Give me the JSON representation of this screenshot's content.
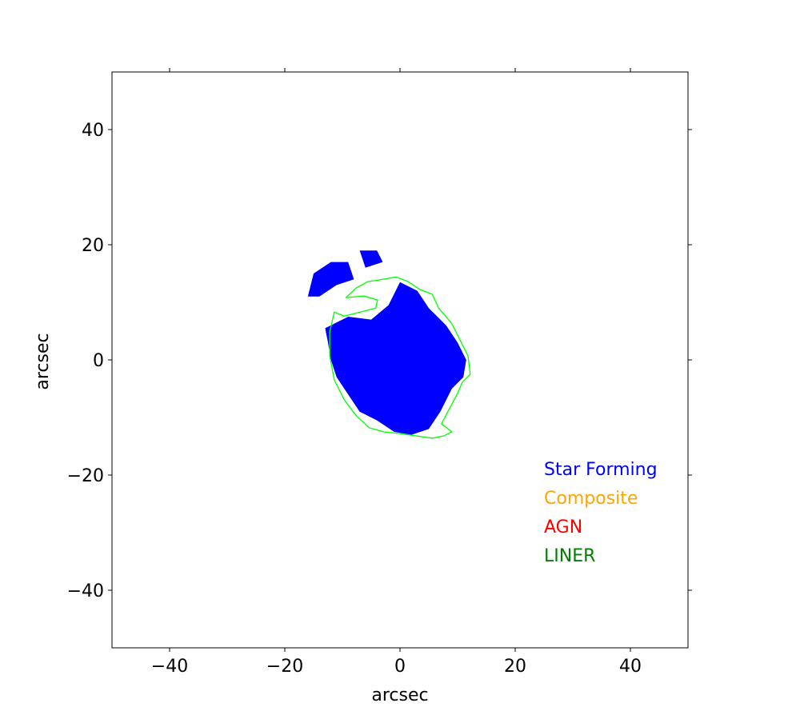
{
  "chart_data": {
    "type": "map",
    "xlabel": "arcsec",
    "ylabel": "arcsec",
    "xlim": [
      -50,
      50
    ],
    "ylim": [
      -50,
      50
    ],
    "xticks": [
      {
        "value": -40,
        "label": "−40"
      },
      {
        "value": -20,
        "label": "−20"
      },
      0,
      20,
      40
    ],
    "yticks": [
      {
        "value": -40,
        "label": "−40"
      },
      {
        "value": -20,
        "label": "−20"
      },
      0,
      20,
      40
    ],
    "series": [
      {
        "name": "Star Forming",
        "color": "#0000ff",
        "x": [
          [
            -13,
            -9,
            -5,
            -2,
            0,
            3,
            5,
            8,
            10,
            11.5,
            11,
            9,
            7,
            5,
            2,
            -1,
            -4,
            -7,
            -9,
            -11,
            -12,
            -12.5
          ],
          [
            -16,
            -15,
            -12,
            -9,
            -8,
            -11,
            -14
          ],
          [
            -7,
            -4,
            -3,
            -6
          ]
        ],
        "y": [
          [
            5.5,
            7.5,
            7,
            9.5,
            13.5,
            12,
            9,
            6,
            3,
            0,
            -3,
            -5,
            -9,
            -12,
            -13,
            -12.5,
            -10.5,
            -9,
            -6,
            -3,
            0,
            3
          ],
          [
            11,
            15,
            17,
            17,
            14,
            13,
            11
          ],
          [
            19,
            19,
            17,
            16
          ]
        ]
      },
      {
        "name": "Composite",
        "color": "#ffa500"
      },
      {
        "name": "AGN",
        "color": "#ff0000"
      },
      {
        "name": "LINER",
        "color": "#008000"
      }
    ],
    "contour": {
      "color": "#00ff00",
      "x": [
        -9.4,
        -7.6,
        -5.6,
        -3.5,
        -0.7,
        1.4,
        3.5,
        5.6,
        6.7,
        9.0,
        10.4,
        11.8,
        12.2,
        10.8,
        10.0,
        8.3,
        7.2,
        9.0,
        7.6,
        5.6,
        2.8,
        0,
        -2.8,
        -5.3,
        -7.6,
        -9.7,
        -11.4,
        -12.2,
        -12.2,
        -11.4,
        -9.7,
        -6.9,
        -4.2,
        -3.9,
        -6.3,
        -9.4
      ],
      "y": [
        10.8,
        12.5,
        13.6,
        13.9,
        14.4,
        13.6,
        12.2,
        11.4,
        9.0,
        6.3,
        3.5,
        0.7,
        -2.5,
        -3.9,
        -5.8,
        -9.0,
        -11.1,
        -12.5,
        -13.2,
        -13.6,
        -13.2,
        -12.8,
        -12.5,
        -11.8,
        -9.7,
        -6.9,
        -3.5,
        0.7,
        4.9,
        8.3,
        7.6,
        8.3,
        9.0,
        10.4,
        11.1,
        10.8
      ]
    }
  }
}
